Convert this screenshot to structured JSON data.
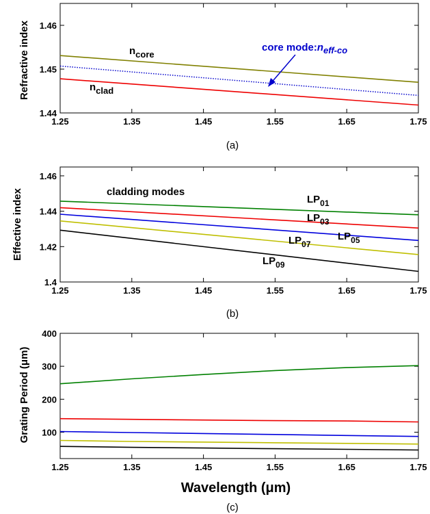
{
  "chart_data": [
    {
      "type": "line",
      "panel": "(a)",
      "ylabel": "Refractive index",
      "xlim": [
        1.25,
        1.75
      ],
      "ylim": [
        1.44,
        1.465
      ],
      "xticks": [
        "1.25",
        "1.35",
        "1.45",
        "1.55",
        "1.65",
        "1.75"
      ],
      "yticks": [
        "1.44",
        "1.45",
        "1.46"
      ],
      "x": [
        1.25,
        1.75
      ],
      "series": [
        {
          "name": "n_core",
          "color": "#808000",
          "dash": "solid",
          "values": [
            1.4531,
            1.447
          ]
        },
        {
          "name": "core mode:n_eff-co",
          "color": "#0000cc",
          "dash": "dotted",
          "values": [
            1.4507,
            1.444
          ]
        },
        {
          "name": "n_clad",
          "color": "#ee0000",
          "dash": "solid",
          "values": [
            1.4478,
            1.4418
          ]
        }
      ],
      "annotations": {
        "core_base": "n",
        "core_sub": "core",
        "clad_base": "n",
        "clad_sub": "clad",
        "mode_prefix": "core mode:",
        "mode_base": "n",
        "mode_sub": "eff-co"
      },
      "caption": "(a)"
    },
    {
      "type": "line",
      "panel": "(b)",
      "ylabel": "Effective index",
      "xlim": [
        1.25,
        1.75
      ],
      "ylim": [
        1.4,
        1.465
      ],
      "xticks": [
        "1.25",
        "1.35",
        "1.45",
        "1.55",
        "1.65",
        "1.75"
      ],
      "yticks": [
        "1.4",
        "1.42",
        "1.44",
        "1.46"
      ],
      "x": [
        1.25,
        1.75
      ],
      "series": [
        {
          "name": "LP01",
          "color": "#008000",
          "values": [
            1.4457,
            1.438
          ]
        },
        {
          "name": "LP03",
          "color": "#ee0000",
          "values": [
            1.442,
            1.4305
          ]
        },
        {
          "name": "LP05",
          "color": "#0000dd",
          "values": [
            1.4383,
            1.4235
          ]
        },
        {
          "name": "LP07",
          "color": "#bfbf00",
          "values": [
            1.4345,
            1.4155
          ]
        },
        {
          "name": "LP09",
          "color": "#000000",
          "values": [
            1.4293,
            1.406
          ]
        }
      ],
      "annotations": {
        "title": "cladding modes",
        "labels": [
          {
            "base": "LP",
            "sub": "01"
          },
          {
            "base": "LP",
            "sub": "03"
          },
          {
            "base": "LP",
            "sub": "05"
          },
          {
            "base": "LP",
            "sub": "07"
          },
          {
            "base": "LP",
            "sub": "09"
          }
        ]
      },
      "caption": "(b)"
    },
    {
      "type": "line",
      "panel": "(c)",
      "ylabel": "Grating Period (μm)",
      "xlabel": "Wavelength  (μm)",
      "xlim": [
        1.25,
        1.75
      ],
      "ylim": [
        20,
        400
      ],
      "xticks": [
        "1.25",
        "1.35",
        "1.45",
        "1.55",
        "1.65",
        "1.75"
      ],
      "yticks": [
        "100",
        "200",
        "300",
        "400"
      ],
      "x": [
        1.25,
        1.35,
        1.45,
        1.55,
        1.65,
        1.75
      ],
      "series": [
        {
          "color": "#008000",
          "values": [
            247,
            262,
            275,
            287,
            296,
            302
          ]
        },
        {
          "color": "#ee0000",
          "values": [
            141,
            139,
            137,
            135,
            134,
            131
          ]
        },
        {
          "color": "#0000dd",
          "values": [
            102,
            99,
            96,
            93,
            90,
            87
          ]
        },
        {
          "color": "#bfbf00",
          "values": [
            75,
            72,
            70,
            68,
            66,
            64
          ]
        },
        {
          "color": "#000000",
          "values": [
            57,
            54,
            52,
            50,
            48,
            46
          ]
        }
      ],
      "caption": "(c)"
    }
  ]
}
